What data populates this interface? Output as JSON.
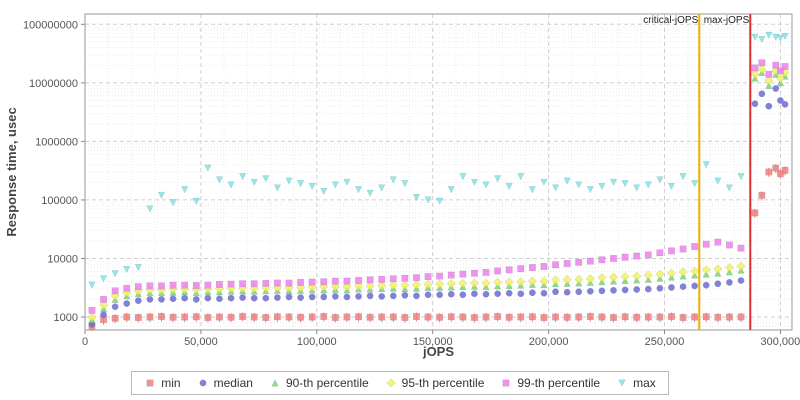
{
  "chart_data": {
    "type": "scatter",
    "xlabel": "jOPS",
    "ylabel": "Response time, usec",
    "x_range": [
      0,
      305000
    ],
    "y_range": [
      600,
      150000000
    ],
    "y_scale": "log",
    "grid": true,
    "legend_position": "bottom",
    "x_ticks": [
      0,
      50000,
      100000,
      150000,
      200000,
      250000,
      300000
    ],
    "x_tick_labels": [
      "0",
      "50,000",
      "100,000",
      "150,000",
      "200,000",
      "250,000",
      "300,000"
    ],
    "y_ticks": [
      1000,
      10000,
      100000,
      1000000,
      10000000,
      100000000
    ],
    "annotations": [
      {
        "label": "critical-jOPS",
        "x": 265000,
        "color": "#f0ad00"
      },
      {
        "label": "max-jOPS",
        "x": 287000,
        "color": "#e03030"
      }
    ],
    "x": [
      3000,
      8000,
      13000,
      18000,
      23000,
      28000,
      33000,
      38000,
      43000,
      48000,
      53000,
      58000,
      63000,
      68000,
      73000,
      78000,
      83000,
      88000,
      93000,
      98000,
      103000,
      108000,
      113000,
      118000,
      123000,
      128000,
      133000,
      138000,
      143000,
      148000,
      153000,
      158000,
      163000,
      168000,
      173000,
      178000,
      183000,
      188000,
      193000,
      198000,
      203000,
      208000,
      213000,
      218000,
      223000,
      228000,
      233000,
      238000,
      243000,
      248000,
      253000,
      258000,
      263000,
      268000,
      273000,
      278000,
      283000,
      289000,
      292000,
      295000,
      298000,
      300000,
      302000
    ],
    "series": [
      {
        "name": "min",
        "shape": "square",
        "color": "#f08080",
        "whisker": true,
        "values": [
          700,
          900,
          950,
          1000,
          980,
          1000,
          1020,
          990,
          1000,
          1010,
          980,
          1000,
          990,
          1020,
          1000,
          980,
          1010,
          1000,
          990,
          1000,
          1020,
          980,
          1000,
          1010,
          990,
          1000,
          1000,
          980,
          1020,
          1000,
          990,
          1010,
          1000,
          980,
          1000,
          1020,
          990,
          1000,
          1010,
          980,
          1000,
          990,
          1000,
          1020,
          1000,
          980,
          1010,
          990,
          1000,
          1000,
          1020,
          980,
          1000,
          1010,
          990,
          1000,
          1000,
          60000,
          120000,
          300000,
          350000,
          280000,
          320000
        ]
      },
      {
        "name": "median",
        "shape": "circle",
        "color": "#6b6bd6",
        "values": [
          750,
          1100,
          1500,
          1700,
          1900,
          2000,
          2000,
          2050,
          2100,
          2000,
          2100,
          2050,
          2100,
          2150,
          2100,
          2100,
          2150,
          2200,
          2150,
          2200,
          2200,
          2250,
          2200,
          2250,
          2300,
          2250,
          2300,
          2350,
          2300,
          2400,
          2400,
          2450,
          2400,
          2500,
          2450,
          2500,
          2550,
          2500,
          2600,
          2550,
          2700,
          2650,
          2700,
          2750,
          2800,
          2850,
          2900,
          2950,
          3000,
          3100,
          3200,
          3300,
          3400,
          3500,
          3700,
          3900,
          4200,
          4400000,
          6500000,
          4000000,
          8000000,
          5000000,
          4300000
        ]
      },
      {
        "name": "90-th percentile",
        "shape": "triangle-up",
        "color": "#74d874",
        "values": [
          900,
          1400,
          2000,
          2300,
          2500,
          2600,
          2600,
          2650,
          2700,
          2600,
          2700,
          2700,
          2750,
          2800,
          2750,
          2800,
          2850,
          2800,
          2850,
          2900,
          2900,
          2950,
          2900,
          3000,
          3000,
          3050,
          3100,
          3050,
          3100,
          3200,
          3200,
          3250,
          3300,
          3350,
          3300,
          3400,
          3450,
          3500,
          3600,
          3550,
          3700,
          3750,
          3800,
          3900,
          4000,
          4100,
          4200,
          4300,
          4400,
          4600,
          4800,
          5000,
          5200,
          5400,
          5600,
          5900,
          6300,
          12000000,
          15000000,
          9000000,
          14000000,
          10000000,
          13000000
        ]
      },
      {
        "name": "95-th percentile",
        "shape": "diamond",
        "color": "#f2f25f",
        "values": [
          1000,
          1600,
          2300,
          2600,
          2800,
          2900,
          2900,
          3000,
          3000,
          2950,
          3000,
          3050,
          3100,
          3100,
          3100,
          3150,
          3200,
          3150,
          3200,
          3250,
          3300,
          3300,
          3300,
          3400,
          3400,
          3450,
          3500,
          3500,
          3550,
          3600,
          3650,
          3700,
          3750,
          3800,
          3800,
          3900,
          3950,
          4000,
          4100,
          4100,
          4300,
          4350,
          4400,
          4500,
          4700,
          4800,
          4900,
          5000,
          5200,
          5400,
          5600,
          5900,
          6100,
          6400,
          6600,
          7000,
          7400,
          14000000,
          17000000,
          11000000,
          16000000,
          12000000,
          15000000
        ]
      },
      {
        "name": "99-th percentile",
        "shape": "square",
        "color": "#ee7fee",
        "values": [
          1300,
          2000,
          2800,
          3100,
          3300,
          3400,
          3400,
          3500,
          3500,
          3450,
          3500,
          3600,
          3650,
          3700,
          3700,
          3750,
          3800,
          3800,
          3900,
          3950,
          4000,
          4100,
          4100,
          4200,
          4300,
          4400,
          4500,
          4600,
          4700,
          4900,
          5000,
          5200,
          5400,
          5600,
          5800,
          6100,
          6400,
          6700,
          7000,
          7300,
          7800,
          8200,
          8600,
          9000,
          9500,
          10000,
          10500,
          11000,
          11500,
          12500,
          13500,
          14500,
          16000,
          17500,
          19000,
          17000,
          15000,
          18000000,
          22000000,
          14000000,
          20000000,
          16000000,
          19000000
        ]
      },
      {
        "name": "max",
        "shape": "triangle-down",
        "color": "#7ce6e6",
        "values": [
          3500,
          4500,
          5500,
          6500,
          7000,
          70000,
          120000,
          90000,
          150000,
          95000,
          350000,
          220000,
          180000,
          250000,
          200000,
          230000,
          160000,
          210000,
          190000,
          170000,
          140000,
          180000,
          200000,
          150000,
          130000,
          160000,
          220000,
          190000,
          110000,
          100000,
          95000,
          150000,
          250000,
          200000,
          180000,
          230000,
          170000,
          250000,
          150000,
          200000,
          160000,
          210000,
          180000,
          150000,
          170000,
          200000,
          190000,
          160000,
          180000,
          220000,
          170000,
          250000,
          190000,
          400000,
          210000,
          160000,
          250000,
          60000000,
          55000000,
          65000000,
          60000000,
          58000000,
          62000000
        ]
      }
    ]
  }
}
